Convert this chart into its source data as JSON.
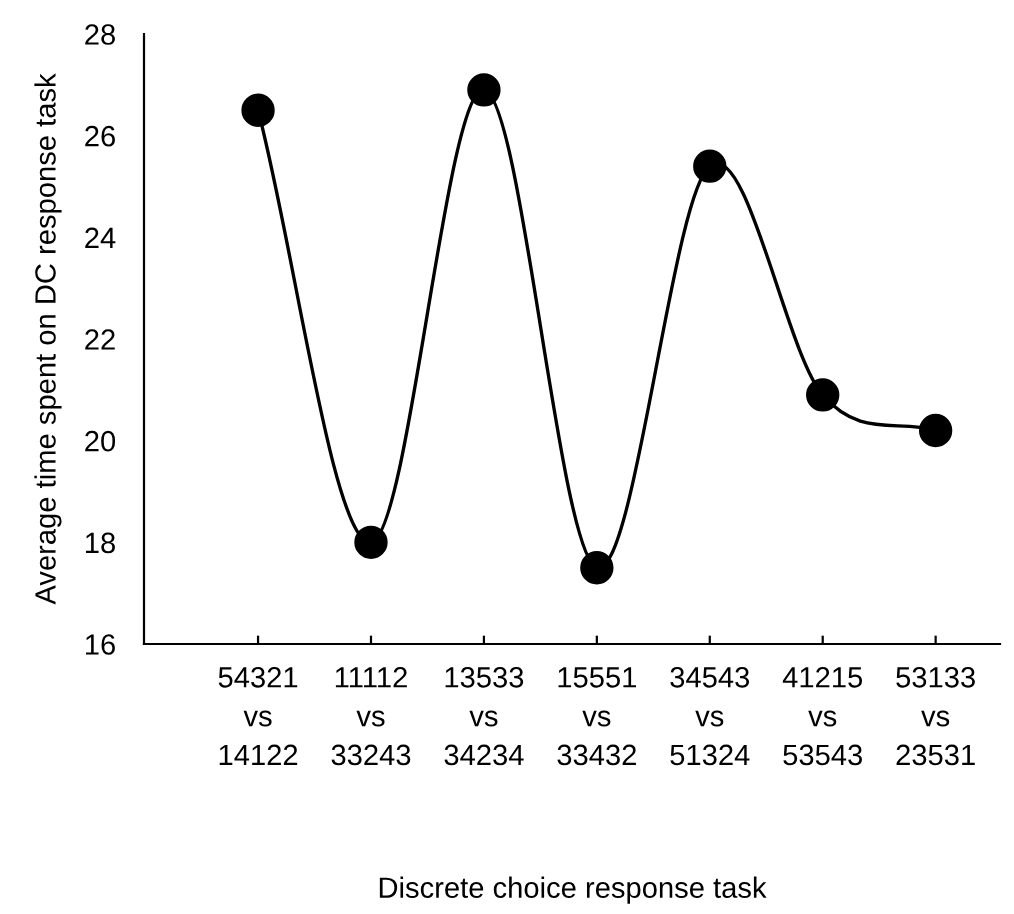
{
  "chart_data": {
    "type": "line",
    "xlabel": "Discrete choice response task",
    "ylabel": "Average time spent on DC response task",
    "categories": [
      "54321\nvs\n14122",
      "11112\nvs\n33243",
      "13533\nvs\n34234",
      "15551\nvs\n33432",
      "34543\nvs\n51324",
      "41215\nvs\n53543",
      "53133\nvs\n23531"
    ],
    "series": [
      {
        "color": "#000000",
        "values": [
          26.5,
          18.0,
          26.9,
          17.5,
          25.4,
          20.9,
          20.2
        ]
      }
    ],
    "ylim": [
      16,
      28
    ],
    "yticks": [
      16,
      18,
      20,
      22,
      24,
      26,
      28
    ],
    "grid": false,
    "marker": "circle",
    "line_style": "solid"
  }
}
